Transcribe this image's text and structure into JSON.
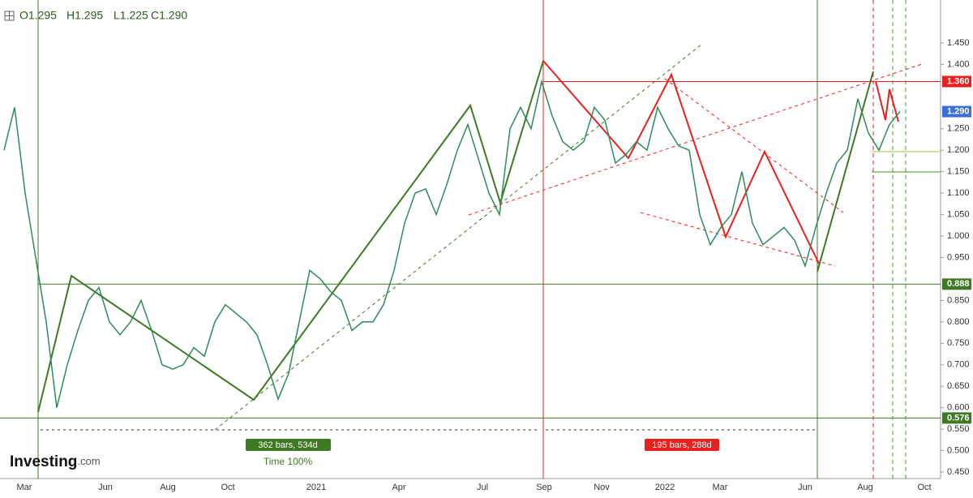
{
  "header": {
    "ohlc": [
      "O1.295",
      "H1.295",
      "L1.225",
      "C1.290"
    ]
  },
  "chart_data": {
    "type": "line",
    "color": "#2e8b57",
    "values": [
      1.2,
      1.3,
      1.1,
      0.95,
      0.8,
      0.6,
      0.7,
      0.78,
      0.85,
      0.88,
      0.8,
      0.77,
      0.8,
      0.85,
      0.78,
      0.7,
      0.69,
      0.7,
      0.74,
      0.72,
      0.8,
      0.84,
      0.82,
      0.8,
      0.77,
      0.7,
      0.62,
      0.68,
      0.8,
      0.92,
      0.9,
      0.87,
      0.85,
      0.78,
      0.8,
      0.8,
      0.84,
      0.92,
      1.03,
      1.1,
      1.11,
      1.05,
      1.12,
      1.2,
      1.26,
      1.18,
      1.1,
      1.05,
      1.25,
      1.3,
      1.25,
      1.36,
      1.28,
      1.22,
      1.2,
      1.22,
      1.3,
      1.27,
      1.17,
      1.19,
      1.22,
      1.2,
      1.3,
      1.25,
      1.21,
      1.2,
      1.05,
      0.98,
      1.02,
      1.05,
      1.15,
      1.03,
      0.98,
      1.0,
      1.02,
      0.99,
      0.93,
      1.02,
      1.1,
      1.17,
      1.2,
      1.32,
      1.24,
      1.2,
      1.26,
      1.29
    ],
    "ylim": [
      0.435,
      1.55
    ],
    "yticks": [
      {
        "value": 0.45,
        "label": "0.450"
      },
      {
        "value": 0.5,
        "label": "0.500"
      },
      {
        "value": 0.55,
        "label": "0.550"
      },
      {
        "value": 0.6,
        "label": "0.600"
      },
      {
        "value": 0.65,
        "label": "0.650"
      },
      {
        "value": 0.7,
        "label": "0.700"
      },
      {
        "value": 0.75,
        "label": "0.750"
      },
      {
        "value": 0.8,
        "label": "0.800"
      },
      {
        "value": 0.85,
        "label": "0.850"
      },
      {
        "value": 0.95,
        "label": "0.950"
      },
      {
        "value": 1.0,
        "label": "1.000"
      },
      {
        "value": 1.05,
        "label": "1.050"
      },
      {
        "value": 1.1,
        "label": "1.100"
      },
      {
        "value": 1.15,
        "label": "1.150"
      },
      {
        "value": 1.2,
        "label": "1.200"
      },
      {
        "value": 1.25,
        "label": "1.250"
      },
      {
        "value": 1.4,
        "label": "1.400"
      },
      {
        "value": 1.45,
        "label": "1.450"
      }
    ],
    "x_labels": [
      "Mar",
      "Jun",
      "Aug",
      "Oct",
      "2021",
      "Apr",
      "Jul",
      "Sep",
      "Nov",
      "2022",
      "Mar",
      "Jun",
      "Aug",
      "Oct"
    ],
    "levels": [
      {
        "value": 1.36,
        "label": "1.360",
        "color": "#e8201e"
      },
      {
        "value": 1.29,
        "label": "1.290",
        "color": "#3b6fd8"
      },
      {
        "value": 0.888,
        "label": "0.888",
        "color": "#3d7a23"
      },
      {
        "value": 0.576,
        "label": "0.576",
        "color": "#3d7a23"
      }
    ],
    "annotations": [
      "362 bars, 534d",
      "Time 100%",
      "195 bars, 288d"
    ],
    "brand": [
      "Investing",
      ".com"
    ]
  }
}
